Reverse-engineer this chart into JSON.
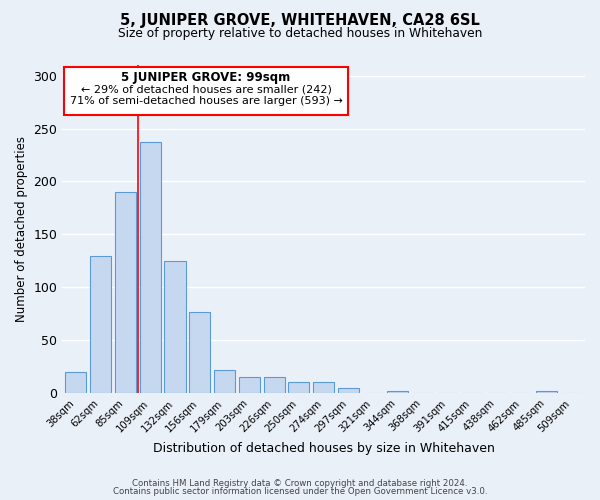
{
  "title": "5, JUNIPER GROVE, WHITEHAVEN, CA28 6SL",
  "subtitle": "Size of property relative to detached houses in Whitehaven",
  "xlabel": "Distribution of detached houses by size in Whitehaven",
  "ylabel": "Number of detached properties",
  "categories": [
    "38sqm",
    "62sqm",
    "85sqm",
    "109sqm",
    "132sqm",
    "156sqm",
    "179sqm",
    "203sqm",
    "226sqm",
    "250sqm",
    "274sqm",
    "297sqm",
    "321sqm",
    "344sqm",
    "368sqm",
    "391sqm",
    "415sqm",
    "438sqm",
    "462sqm",
    "485sqm",
    "509sqm"
  ],
  "values": [
    20,
    130,
    190,
    237,
    125,
    77,
    22,
    15,
    15,
    11,
    11,
    5,
    0,
    2,
    0,
    0,
    0,
    0,
    0,
    2,
    0
  ],
  "bar_color": "#c5d8f0",
  "bar_edge_color": "#5b9bd5",
  "vline_x_index": 3,
  "annotation_title": "5 JUNIPER GROVE: 99sqm",
  "annotation_line1": "← 29% of detached houses are smaller (242)",
  "annotation_line2": "71% of semi-detached houses are larger (593) →",
  "ylim": [
    0,
    310
  ],
  "yticks": [
    0,
    50,
    100,
    150,
    200,
    250,
    300
  ],
  "background_color": "#eaf0f8",
  "grid_color": "#ffffff",
  "fig_background": "#eaf0f8",
  "footnote1": "Contains HM Land Registry data © Crown copyright and database right 2024.",
  "footnote2": "Contains public sector information licensed under the Open Government Licence v3.0."
}
